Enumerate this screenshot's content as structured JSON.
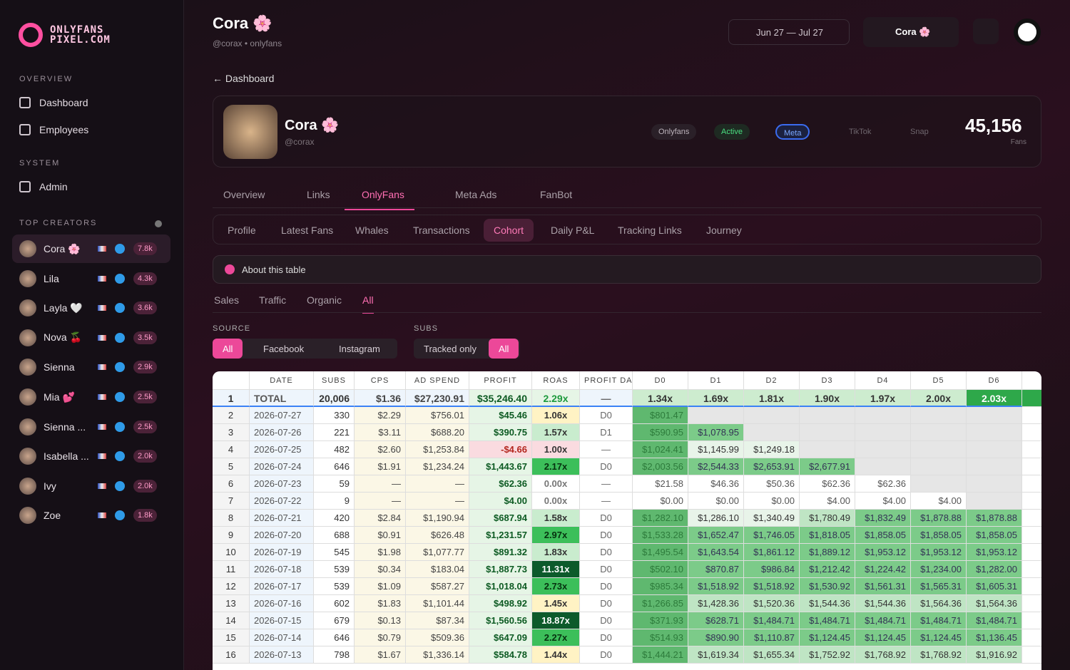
{
  "sidebar": {
    "logo": [
      "ONLYFANS",
      "PIXEL.COM"
    ],
    "overview_label": "OVERVIEW",
    "overview_items": [
      "Dashboard",
      "Employees"
    ],
    "system_label": "SYSTEM",
    "system_items": [
      "Admin"
    ],
    "top_label": "TOP CREATORS",
    "creators": [
      {
        "name": "Cora 🌸",
        "count": "7.8k"
      },
      {
        "name": "Lila",
        "count": "4.3k"
      },
      {
        "name": "Layla 🤍",
        "count": "3.6k"
      },
      {
        "name": "Nova 🍒",
        "count": "3.5k"
      },
      {
        "name": "Sienna",
        "count": "2.9k"
      },
      {
        "name": "Mia 💕",
        "count": "2.5k"
      },
      {
        "name": "Sienna ...",
        "count": "2.5k"
      },
      {
        "name": "Isabella ...",
        "count": "2.0k"
      },
      {
        "name": "Ivy",
        "count": "2.0k"
      },
      {
        "name": "Zoe",
        "count": "1.8k"
      }
    ]
  },
  "header": {
    "name": "Cora 🌸",
    "handle": "@corax • onlyfans",
    "date_range": "Jun 27 — Jul 27",
    "user": "Cora 🌸"
  },
  "breadcrumb": "Dashboard",
  "profile": {
    "name": "Cora 🌸",
    "handle": "@corax",
    "pills": [
      "Onlyfans",
      "Active",
      "Meta",
      "TikTok",
      "Snap"
    ],
    "fans": "45,156",
    "fans_label": "Fans"
  },
  "tabs": {
    "items": [
      "Overview",
      "Links",
      "OnlyFans",
      "Meta Ads",
      "FanBot"
    ],
    "active": 2
  },
  "subtabs": {
    "items": [
      "Profile",
      "Latest Fans",
      "Whales",
      "Transactions",
      "Cohort",
      "Daily P&L",
      "Tracking Links",
      "Journey"
    ],
    "active": 4
  },
  "about": "About this table",
  "views": {
    "items": [
      "Sales",
      "Traffic",
      "Organic",
      "All"
    ],
    "active": 3
  },
  "filters": {
    "source_label": "SOURCE",
    "source": [
      "All",
      "Facebook",
      "Instagram"
    ],
    "subs_label": "SUBS",
    "subs": [
      "Tracked only",
      "All"
    ]
  },
  "table": {
    "columns": [
      "DATE",
      "SUBS",
      "CPS",
      "AD SPEND",
      "PROFIT",
      "ROAS",
      "PROFIT DA",
      "D0",
      "D1",
      "D2",
      "D3",
      "D4",
      "D5",
      "D6"
    ],
    "rows": [
      [
        1,
        "TOTAL",
        "20,006",
        "$1.36",
        "$27,230.91",
        "$35,246.40",
        "2.29x",
        "—",
        "1.34x",
        "1.69x",
        "1.81x",
        "1.90x",
        "1.97x",
        "2.00x",
        "2.03x"
      ],
      [
        2,
        "2026-07-27",
        "330",
        "$2.29",
        "$756.01",
        "$45.46",
        "1.06x",
        "D0",
        "$801.47",
        null,
        null,
        null,
        null,
        null,
        null
      ],
      [
        3,
        "2026-07-26",
        "221",
        "$3.11",
        "$688.20",
        "$390.75",
        "1.57x",
        "D1",
        "$590.95",
        "$1,078.95",
        null,
        null,
        null,
        null,
        null
      ],
      [
        4,
        "2026-07-25",
        "482",
        "$2.60",
        "$1,253.84",
        "-$4.66",
        "1.00x",
        "—",
        "$1,024.41",
        "$1,145.99",
        "$1,249.18",
        null,
        null,
        null,
        null
      ],
      [
        5,
        "2026-07-24",
        "646",
        "$1.91",
        "$1,234.24",
        "$1,443.67",
        "2.17x",
        "D0",
        "$2,003.56",
        "$2,544.33",
        "$2,653.91",
        "$2,677.91",
        null,
        null,
        null
      ],
      [
        6,
        "2026-07-23",
        "59",
        "—",
        "—",
        "$62.36",
        "0.00x",
        "—",
        "$21.58",
        "$46.36",
        "$50.36",
        "$62.36",
        "$62.36",
        null,
        null
      ],
      [
        7,
        "2026-07-22",
        "9",
        "—",
        "—",
        "$4.00",
        "0.00x",
        "—",
        "$0.00",
        "$0.00",
        "$0.00",
        "$4.00",
        "$4.00",
        "$4.00",
        null
      ],
      [
        8,
        "2026-07-21",
        "420",
        "$2.84",
        "$1,190.94",
        "$687.94",
        "1.58x",
        "D0",
        "$1,282.10",
        "$1,286.10",
        "$1,340.49",
        "$1,780.49",
        "$1,832.49",
        "$1,878.88",
        "$1,878.88"
      ],
      [
        9,
        "2026-07-20",
        "688",
        "$0.91",
        "$626.48",
        "$1,231.57",
        "2.97x",
        "D0",
        "$1,533.28",
        "$1,652.47",
        "$1,746.05",
        "$1,818.05",
        "$1,858.05",
        "$1,858.05",
        "$1,858.05"
      ],
      [
        10,
        "2026-07-19",
        "545",
        "$1.98",
        "$1,077.77",
        "$891.32",
        "1.83x",
        "D0",
        "$1,495.54",
        "$1,643.54",
        "$1,861.12",
        "$1,889.12",
        "$1,953.12",
        "$1,953.12",
        "$1,953.12"
      ],
      [
        11,
        "2026-07-18",
        "539",
        "$0.34",
        "$183.04",
        "$1,887.73",
        "11.31x",
        "D0",
        "$502.10",
        "$870.87",
        "$986.84",
        "$1,212.42",
        "$1,224.42",
        "$1,234.00",
        "$1,282.00"
      ],
      [
        12,
        "2026-07-17",
        "539",
        "$1.09",
        "$587.27",
        "$1,018.04",
        "2.73x",
        "D0",
        "$985.34",
        "$1,518.92",
        "$1,518.92",
        "$1,530.92",
        "$1,561.31",
        "$1,565.31",
        "$1,605.31"
      ],
      [
        13,
        "2026-07-16",
        "602",
        "$1.83",
        "$1,101.44",
        "$498.92",
        "1.45x",
        "D0",
        "$1,266.85",
        "$1,428.36",
        "$1,520.36",
        "$1,544.36",
        "$1,544.36",
        "$1,564.36",
        "$1,564.36"
      ],
      [
        14,
        "2026-07-15",
        "679",
        "$0.13",
        "$87.34",
        "$1,560.56",
        "18.87x",
        "D0",
        "$371.93",
        "$628.71",
        "$1,484.71",
        "$1,484.71",
        "$1,484.71",
        "$1,484.71",
        "$1,484.71"
      ],
      [
        15,
        "2026-07-14",
        "646",
        "$0.79",
        "$509.36",
        "$647.09",
        "2.27x",
        "D0",
        "$514.93",
        "$890.90",
        "$1,110.87",
        "$1,124.45",
        "$1,124.45",
        "$1,124.45",
        "$1,136.45"
      ],
      [
        16,
        "2026-07-13",
        "798",
        "$1.67",
        "$1,336.14",
        "$584.78",
        "1.44x",
        "D0",
        "$1,444.21",
        "$1,619.34",
        "$1,655.34",
        "$1,752.92",
        "$1,768.92",
        "$1,768.92",
        "$1,916.92"
      ]
    ]
  }
}
